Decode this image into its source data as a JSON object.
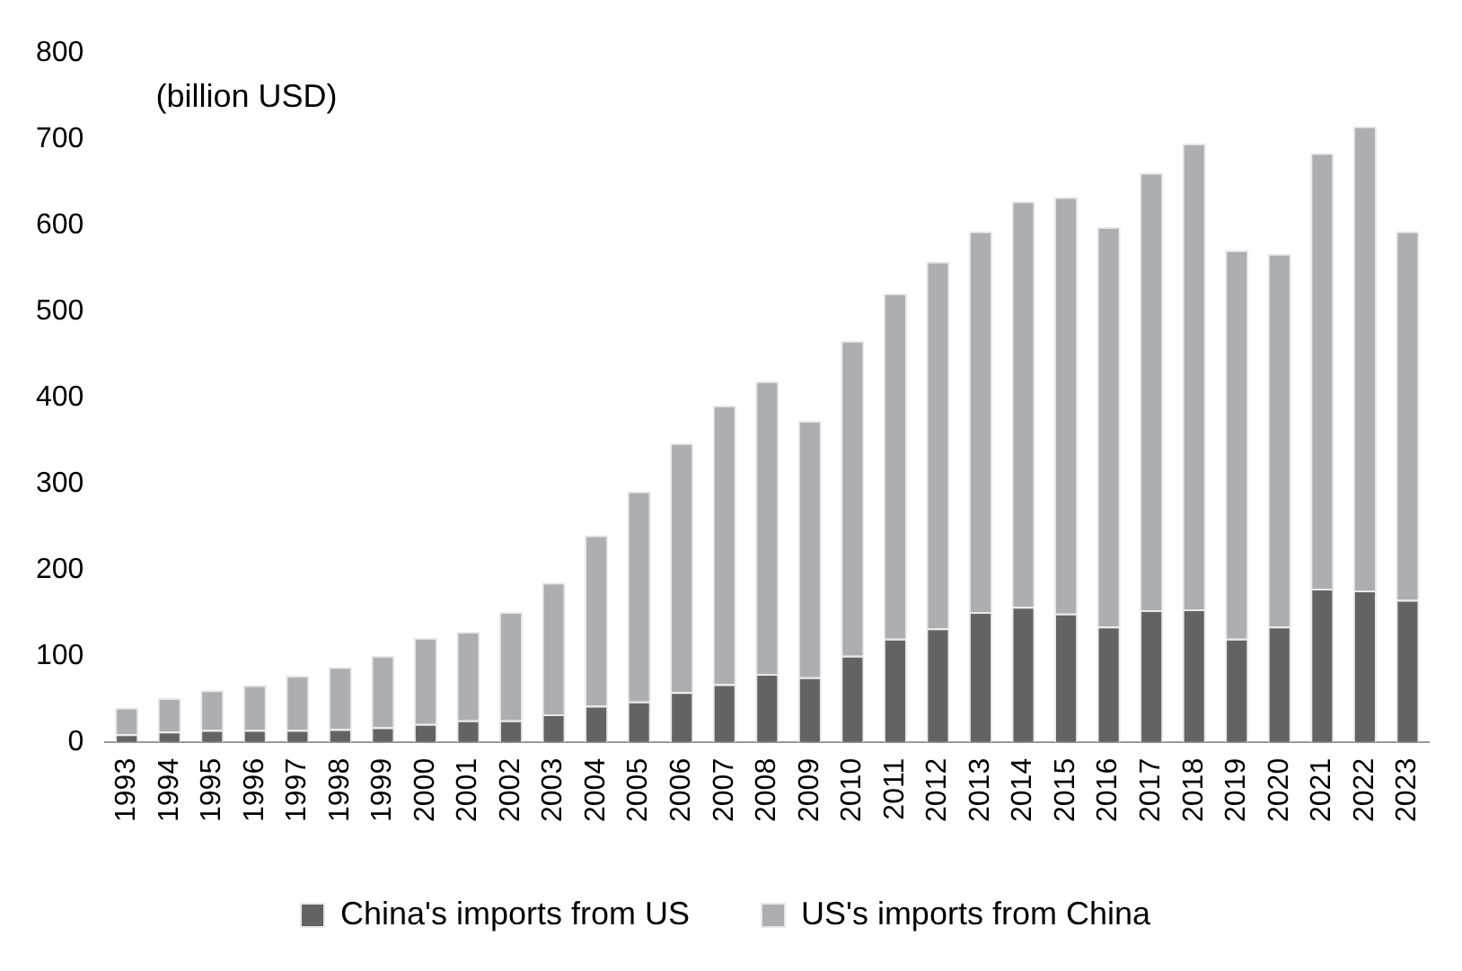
{
  "chart_data": {
    "type": "bar",
    "stacked": true,
    "ylabel": "(billion USD)",
    "categories": [
      "1993",
      "1994",
      "1995",
      "1996",
      "1997",
      "1998",
      "1999",
      "2000",
      "2001",
      "2002",
      "2003",
      "2004",
      "2005",
      "2006",
      "2007",
      "2008",
      "2009",
      "2010",
      "2011",
      "2012",
      "2013",
      "2014",
      "2015",
      "2016",
      "2017",
      "2018",
      "2019",
      "2020",
      "2021",
      "2022",
      "2023"
    ],
    "series": [
      {
        "name": "China's imports from US",
        "color": "#636363",
        "values": [
          9,
          12,
          14,
          14,
          14,
          15,
          17,
          21,
          25,
          25,
          32,
          42,
          47,
          58,
          67,
          79,
          75,
          100,
          120,
          132,
          151,
          157,
          149,
          134,
          153,
          154,
          120,
          134,
          178,
          176,
          165
        ]
      },
      {
        "name": "US's imports from China",
        "color": "#adaeb2",
        "values": [
          31,
          39,
          46,
          52,
          63,
          72,
          83,
          100,
          103,
          126,
          153,
          198,
          244,
          289,
          324,
          340,
          298,
          366,
          401,
          426,
          442,
          471,
          484,
          464,
          508,
          541,
          451,
          433,
          506,
          539,
          428
        ]
      }
    ],
    "ylim": [
      0,
      800
    ],
    "yticks": [
      0,
      100,
      200,
      300,
      400,
      500,
      600,
      700,
      800
    ],
    "grid": false,
    "legend": "bottom"
  }
}
